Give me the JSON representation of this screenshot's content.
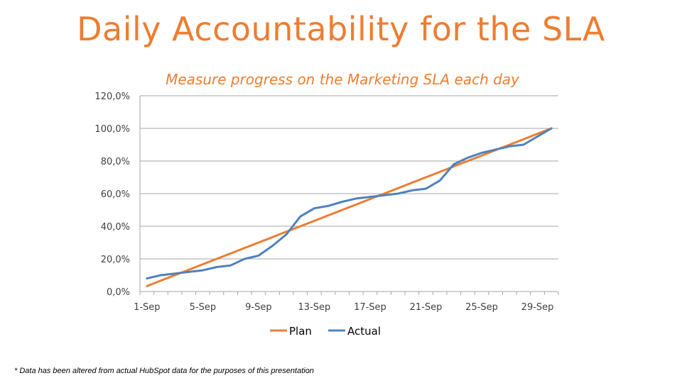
{
  "title": "Daily Accountability for the SLA",
  "footnote": "* Data has been altered from actual HubSpot data for the purposes of this presentation",
  "colors": {
    "accent": "#ED7D31",
    "plan": "#ED7D31",
    "actual": "#4F81BD",
    "grid": "#A6A6A6"
  },
  "chart_data": {
    "type": "line",
    "title": "Measure progress on the Marketing SLA each day",
    "xlabel": "",
    "ylabel": "",
    "x": [
      "1-Sep",
      "2-Sep",
      "3-Sep",
      "4-Sep",
      "5-Sep",
      "6-Sep",
      "7-Sep",
      "8-Sep",
      "9-Sep",
      "10-Sep",
      "11-Sep",
      "12-Sep",
      "13-Sep",
      "14-Sep",
      "15-Sep",
      "16-Sep",
      "17-Sep",
      "18-Sep",
      "19-Sep",
      "20-Sep",
      "21-Sep",
      "22-Sep",
      "23-Sep",
      "24-Sep",
      "25-Sep",
      "26-Sep",
      "27-Sep",
      "28-Sep",
      "29-Sep",
      "30-Sep"
    ],
    "xtick_labels": [
      "1-Sep",
      "5-Sep",
      "9-Sep",
      "13-Sep",
      "17-Sep",
      "21-Sep",
      "25-Sep",
      "29-Sep"
    ],
    "xtick_indices": [
      0,
      4,
      8,
      12,
      16,
      20,
      24,
      28
    ],
    "ylim": [
      0,
      120
    ],
    "yticks": [
      0,
      20,
      40,
      60,
      80,
      100,
      120
    ],
    "ytick_labels": [
      "0,0%",
      "20,0%",
      "40,0%",
      "60,0%",
      "80,0%",
      "100,0%",
      "120,0%"
    ],
    "grid": true,
    "legend_position": "bottom",
    "series": [
      {
        "name": "Plan",
        "values": [
          3.3,
          6.7,
          10.0,
          13.3,
          16.7,
          20.0,
          23.3,
          26.7,
          30.0,
          33.3,
          36.7,
          40.0,
          43.3,
          46.7,
          50.0,
          53.3,
          56.7,
          60.0,
          63.3,
          66.7,
          70.0,
          73.3,
          76.7,
          80.0,
          83.3,
          86.7,
          90.0,
          93.3,
          96.7,
          100.0
        ]
      },
      {
        "name": "Actual",
        "values": [
          8.0,
          10.0,
          11.0,
          12.0,
          13.0,
          15.0,
          16.0,
          20.0,
          22.0,
          28.0,
          35.0,
          46.0,
          51.0,
          52.5,
          55.0,
          57.0,
          58.0,
          59.0,
          60.0,
          62.0,
          63.0,
          68.0,
          78.0,
          82.0,
          85.0,
          87.0,
          89.0,
          90.0,
          95.0,
          100.0
        ]
      }
    ]
  }
}
